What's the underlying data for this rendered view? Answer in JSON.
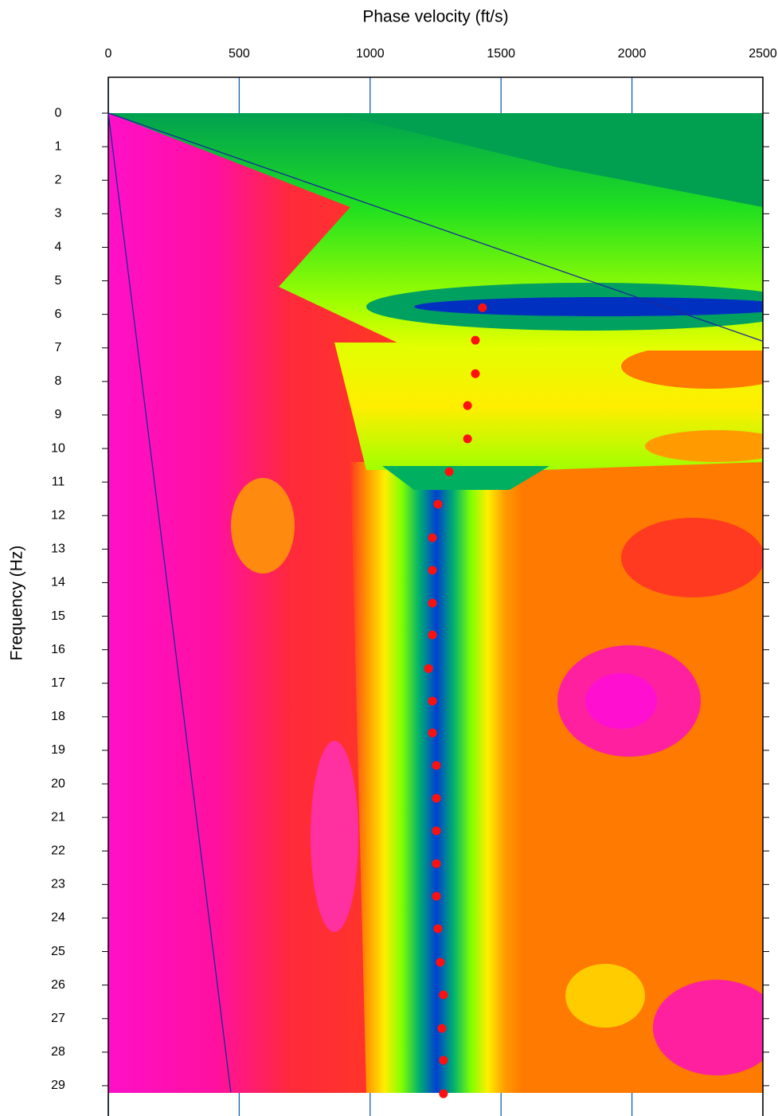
{
  "chart_data": {
    "type": "scatter",
    "x_label": "Phase velocity (ft/s)",
    "y_label": "Frequency (Hz)",
    "xlim": [
      0,
      2500
    ],
    "ylim": [
      -1.07,
      29.88
    ],
    "y_inverted": true,
    "xticks": [
      0,
      500,
      1000,
      1500,
      2000,
      2500
    ],
    "yticks": [
      0,
      1,
      2,
      3,
      4,
      5,
      6,
      7,
      8,
      9,
      10,
      11,
      12,
      13,
      14,
      15,
      16,
      17,
      18,
      19,
      20,
      21,
      22,
      23,
      24,
      25,
      26,
      27,
      28,
      29
    ],
    "grid": true,
    "series": [
      {
        "color": "#ff1010",
        "x": [
          1429,
          1402,
          1402,
          1372,
          1372,
          1302,
          1259,
          1238,
          1238,
          1238,
          1238,
          1223,
          1238,
          1238,
          1253,
          1253,
          1253,
          1253,
          1253,
          1259,
          1268,
          1280,
          1274,
          1280,
          1280
        ],
        "y": [
          5.8,
          6.77,
          7.77,
          8.72,
          9.71,
          10.69,
          11.66,
          12.66,
          13.63,
          14.61,
          15.56,
          16.56,
          17.53,
          18.48,
          19.45,
          20.43,
          21.4,
          22.38,
          23.35,
          24.32,
          25.32,
          26.29,
          27.29,
          28.24,
          29.24
        ]
      }
    ],
    "lines": [
      {
        "color": "#1a2a9a",
        "x": [
          0,
          2500
        ],
        "y": [
          0,
          6.8
        ]
      },
      {
        "color": "#1a2a9a",
        "x": [
          0,
          468
        ],
        "y": [
          0,
          29.2
        ]
      }
    ]
  }
}
